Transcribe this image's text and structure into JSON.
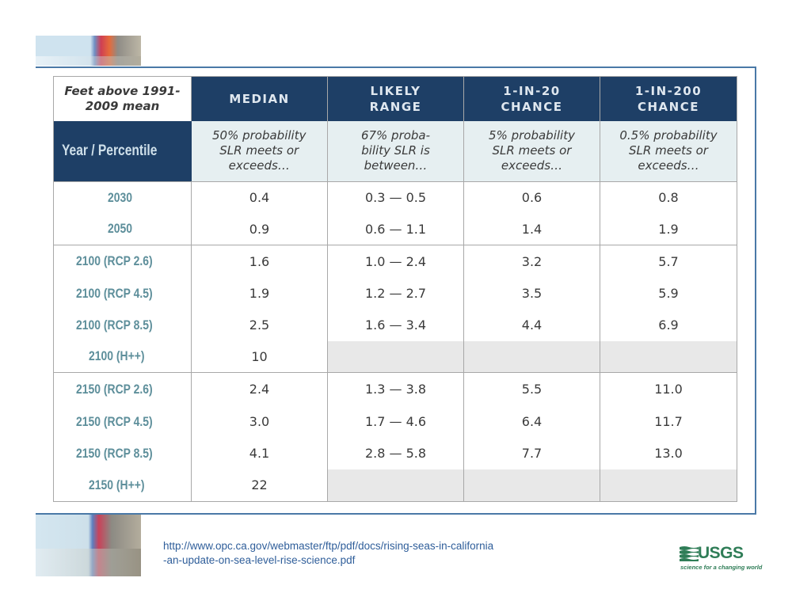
{
  "table": {
    "corner_label": "Feet above 1991-2009 mean",
    "row_header_label": "Year / Percentile",
    "columns": [
      {
        "heading": "MEDIAN",
        "description": "50% probability SLR meets or exceeds…"
      },
      {
        "heading": "LIKELY RANGE",
        "description": "67% proba-bility SLR is between…"
      },
      {
        "heading": "1-IN-20 CHANCE",
        "description": "5% probability SLR meets or exceeds…"
      },
      {
        "heading": "1-IN-200 CHANCE",
        "description": "0.5% probability SLR meets or exceeds…"
      }
    ],
    "rows": [
      {
        "year": "2030",
        "median": "0.4",
        "likely": "0.3 — 0.5",
        "one_in_20": "0.6",
        "one_in_200": "0.8"
      },
      {
        "year": "2050",
        "median": "0.9",
        "likely": "0.6 — 1.1",
        "one_in_20": "1.4",
        "one_in_200": "1.9"
      },
      {
        "year": "2100 (RCP 2.6)",
        "median": "1.6",
        "likely": "1.0 — 2.4",
        "one_in_20": "3.2",
        "one_in_200": "5.7"
      },
      {
        "year": "2100 (RCP 4.5)",
        "median": "1.9",
        "likely": "1.2 — 2.7",
        "one_in_20": "3.5",
        "one_in_200": "5.9"
      },
      {
        "year": "2100 (RCP 8.5)",
        "median": "2.5",
        "likely": "1.6 — 3.4",
        "one_in_20": "4.4",
        "one_in_200": "6.9"
      },
      {
        "year": "2100 (H++)",
        "median": "10",
        "likely": "",
        "one_in_20": "",
        "one_in_200": ""
      },
      {
        "year": "2150 (RCP 2.6)",
        "median": "2.4",
        "likely": "1.3 — 3.8",
        "one_in_20": "5.5",
        "one_in_200": "11.0"
      },
      {
        "year": "2150 (RCP 4.5)",
        "median": "3.0",
        "likely": "1.7 — 4.6",
        "one_in_20": "6.4",
        "one_in_200": "11.7"
      },
      {
        "year": "2150 (RCP 8.5)",
        "median": "4.1",
        "likely": "2.8 — 5.8",
        "one_in_20": "7.7",
        "one_in_200": "13.0"
      },
      {
        "year": "2150 (H++)",
        "median": "22",
        "likely": "",
        "one_in_20": "",
        "one_in_200": ""
      }
    ]
  },
  "footer": {
    "source_url": "http://www.opc.ca.gov/webmaster/ftp/pdf/docs/rising-seas-in-california-an-update-on-sea-level-rise-science.pdf"
  },
  "logo": {
    "name": "USGS",
    "tagline": "science for a changing world",
    "color": "#2f7d57"
  },
  "colors": {
    "header_navy": "#1e3f66",
    "description_band": "#e6eff1",
    "year_teal": "#5e8f9b",
    "frame_blue": "#4a79a7"
  }
}
